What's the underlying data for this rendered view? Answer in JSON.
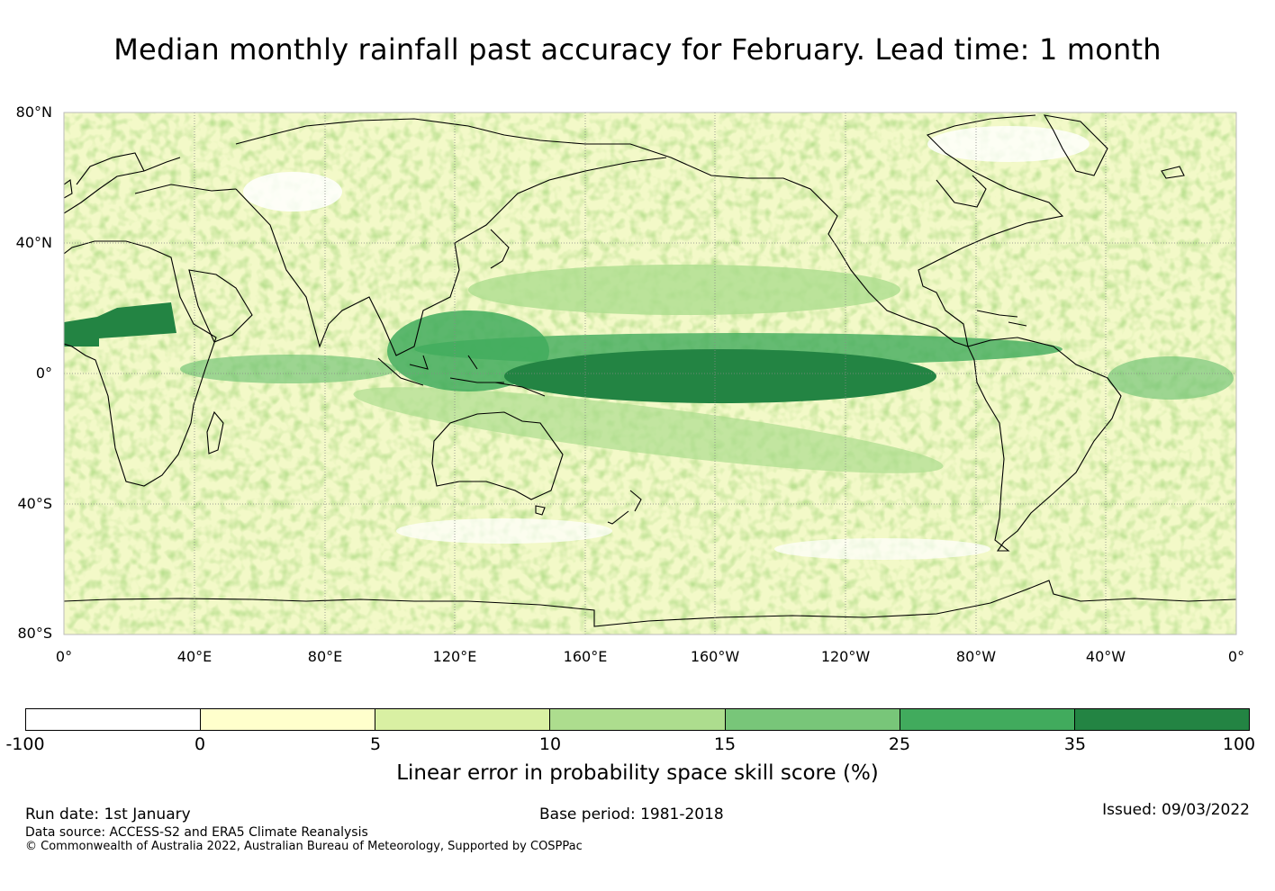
{
  "title": "Median monthly rainfall past accuracy for February. Lead time: 1 month",
  "map": {
    "lat_labels": [
      "80°N",
      "40°N",
      "0°",
      "40°S",
      "80°S"
    ],
    "lon_labels": [
      "0°",
      "40°E",
      "80°E",
      "120°E",
      "160°E",
      "160°W",
      "120°W",
      "80°W",
      "40°W",
      "0°"
    ],
    "lat_range": [
      -80,
      80
    ],
    "lon_range": [
      0,
      360
    ]
  },
  "colorbar": {
    "ticks": [
      "-100",
      "0",
      "5",
      "10",
      "15",
      "25",
      "35",
      "100"
    ],
    "colors": [
      "#ffffff",
      "#ffffcc",
      "#d9f0a3",
      "#addd8e",
      "#78c679",
      "#41ab5d",
      "#238443"
    ],
    "label": "Linear error in probability space skill score (%)"
  },
  "footer": {
    "run_date": "Run date: 1st January",
    "base_period": "Base period: 1981-2018",
    "issued": "Issued: 09/03/2022",
    "data_source": "Data source: ACCESS-S2 and ERA5 Climate Reanalysis",
    "copyright": "© Commonwealth of Australia 2022, Australian Bureau of Meteorology, Supported by COSPPac"
  }
}
